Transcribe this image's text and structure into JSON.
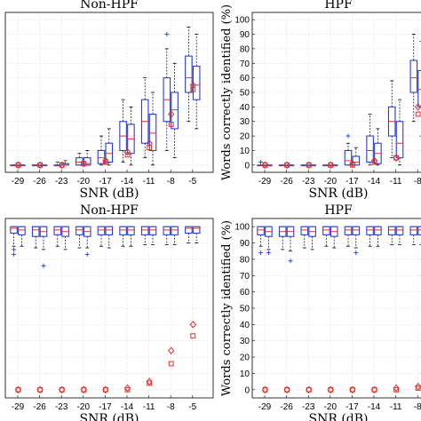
{
  "chart_data": [
    {
      "type": "box",
      "title": "Non-HPF",
      "xlabel": "SNR (dB)",
      "ylabel": "",
      "categories": [
        "-29",
        "-26",
        "-23",
        "-20",
        "-17",
        "-14",
        "-11",
        "-8",
        "-5"
      ],
      "ylim": [
        -5,
        105
      ],
      "yticks": [],
      "grid": true,
      "series": [
        {
          "color": "#2b3fcf",
          "boxes": [
            {
              "q1": 0,
              "med": 0,
              "q3": 0,
              "wlo": 0,
              "whi": 0,
              "out": []
            },
            {
              "q1": 0,
              "med": 0,
              "q3": 0,
              "wlo": 0,
              "whi": 0,
              "out": []
            },
            {
              "q1": 0,
              "med": 0,
              "q3": 0,
              "wlo": 0,
              "whi": 2,
              "out": []
            },
            {
              "q1": 0,
              "med": 2,
              "q3": 5,
              "wlo": 0,
              "whi": 8,
              "out": []
            },
            {
              "q1": 1,
              "med": 5,
              "q3": 10,
              "wlo": 0,
              "whi": 20,
              "out": []
            },
            {
              "q1": 10,
              "med": 20,
              "q3": 30,
              "wlo": 2,
              "whi": 45,
              "out": []
            },
            {
              "q1": 15,
              "med": 30,
              "q3": 45,
              "wlo": 5,
              "whi": 60,
              "out": []
            },
            {
              "q1": 30,
              "med": 45,
              "q3": 60,
              "wlo": 10,
              "whi": 80,
              "out": [
                90
              ]
            },
            {
              "q1": 50,
              "med": 60,
              "q3": 75,
              "wlo": 30,
              "whi": 95,
              "out": []
            }
          ]
        },
        {
          "color": "#2b3fcf",
          "boxes": [
            {
              "q1": 0,
              "med": 0,
              "q3": 0,
              "wlo": 0,
              "whi": 0,
              "out": []
            },
            {
              "q1": 0,
              "med": 0,
              "q3": 0,
              "wlo": 0,
              "whi": 0,
              "out": []
            },
            {
              "q1": 0,
              "med": 0,
              "q3": 1,
              "wlo": 0,
              "whi": 3,
              "out": []
            },
            {
              "q1": 0,
              "med": 1,
              "q3": 5,
              "wlo": 0,
              "whi": 10,
              "out": []
            },
            {
              "q1": 2,
              "med": 8,
              "q3": 15,
              "wlo": 0,
              "whi": 25,
              "out": []
            },
            {
              "q1": 8,
              "med": 18,
              "q3": 28,
              "wlo": 0,
              "whi": 40,
              "out": []
            },
            {
              "q1": 10,
              "med": 22,
              "q3": 35,
              "wlo": 0,
              "whi": 50,
              "out": []
            },
            {
              "q1": 25,
              "med": 38,
              "q3": 50,
              "wlo": 5,
              "whi": 70,
              "out": []
            },
            {
              "q1": 45,
              "med": 55,
              "q3": 68,
              "wlo": 25,
              "whi": 90,
              "out": []
            }
          ]
        }
      ],
      "markers": [
        {
          "shape": "diamond",
          "color": "#e0312b",
          "values": [
            0,
            0,
            0,
            1,
            3,
            9,
            15,
            35,
            55
          ]
        },
        {
          "shape": "square",
          "color": "#e0312b",
          "values": [
            0,
            0,
            0,
            1,
            2,
            7,
            12,
            28,
            52
          ]
        }
      ]
    },
    {
      "type": "box",
      "title": "HPF",
      "xlabel": "SNR (dB)",
      "ylabel": "Words correctly identified (%)",
      "categories": [
        "-29",
        "-26",
        "-23",
        "-20",
        "-17",
        "-14",
        "-11",
        "-8",
        "-5"
      ],
      "ylim": [
        -5,
        105
      ],
      "yticks": [
        0,
        10,
        20,
        30,
        40,
        50,
        60,
        70,
        80,
        90,
        100
      ],
      "grid": true,
      "series": [
        {
          "color": "#2b3fcf",
          "boxes": [
            {
              "q1": 0,
              "med": 0,
              "q3": 0,
              "wlo": 0,
              "whi": 0,
              "out": [
                2
              ]
            },
            {
              "q1": 0,
              "med": 0,
              "q3": 0,
              "wlo": 0,
              "whi": 0,
              "out": []
            },
            {
              "q1": 0,
              "med": 0,
              "q3": 0,
              "wlo": 0,
              "whi": 0,
              "out": []
            },
            {
              "q1": 0,
              "med": 0,
              "q3": 0,
              "wlo": 0,
              "whi": 0,
              "out": []
            },
            {
              "q1": 0,
              "med": 3,
              "q3": 10,
              "wlo": 0,
              "whi": 15,
              "out": [
                20
              ]
            },
            {
              "q1": 2,
              "med": 10,
              "q3": 20,
              "wlo": 0,
              "whi": 35,
              "out": []
            },
            {
              "q1": 20,
              "med": 30,
              "q3": 40,
              "wlo": 5,
              "whi": 58,
              "out": []
            },
            {
              "q1": 50,
              "med": 60,
              "q3": 72,
              "wlo": 30,
              "whi": 90,
              "out": []
            },
            {
              "q1": 30,
              "med": 45,
              "q3": 60,
              "wlo": 10,
              "whi": 85,
              "out": [
                100
              ]
            }
          ]
        },
        {
          "color": "#2b3fcf",
          "boxes": [
            {
              "q1": 0,
              "med": 0,
              "q3": 0,
              "wlo": 0,
              "whi": 0,
              "out": []
            },
            {
              "q1": 0,
              "med": 0,
              "q3": 0,
              "wlo": 0,
              "whi": 0,
              "out": []
            },
            {
              "q1": 0,
              "med": 0,
              "q3": 0,
              "wlo": 0,
              "whi": 0,
              "out": []
            },
            {
              "q1": 0,
              "med": 0,
              "q3": 0,
              "wlo": 0,
              "whi": 0,
              "out": []
            },
            {
              "q1": 0,
              "med": 2,
              "q3": 6,
              "wlo": 0,
              "whi": 12,
              "out": []
            },
            {
              "q1": 1,
              "med": 8,
              "q3": 15,
              "wlo": 0,
              "whi": 25,
              "out": []
            },
            {
              "q1": 5,
              "med": 15,
              "q3": 30,
              "wlo": 0,
              "whi": 45,
              "out": []
            },
            {
              "q1": 40,
              "med": 52,
              "q3": 65,
              "wlo": 20,
              "whi": 85,
              "out": []
            },
            {
              "q1": 25,
              "med": 40,
              "q3": 55,
              "wlo": 5,
              "whi": 80,
              "out": []
            }
          ]
        }
      ],
      "markers": [
        {
          "shape": "diamond",
          "color": "#e0312b",
          "values": [
            0,
            0,
            0,
            0,
            1,
            3,
            5,
            40,
            45
          ]
        },
        {
          "shape": "square",
          "color": "#e0312b",
          "values": [
            0,
            0,
            0,
            0,
            0,
            2,
            5,
            35,
            40
          ]
        }
      ]
    },
    {
      "type": "box",
      "title": "Non-HPF",
      "xlabel": "SNR (dB)",
      "ylabel": "",
      "categories": [
        "-29",
        "-26",
        "-23",
        "-20",
        "-17",
        "-14",
        "-11",
        "-8",
        "-5"
      ],
      "ylim": [
        -5,
        105
      ],
      "yticks": [],
      "grid": true,
      "series": [
        {
          "color": "#2b3fcf",
          "boxes": [
            {
              "q1": 96,
              "med": 99,
              "q3": 100,
              "wlo": 88,
              "whi": 100,
              "out": [
                86,
                83
              ]
            },
            {
              "q1": 94,
              "med": 98,
              "q3": 100,
              "wlo": 87,
              "whi": 100,
              "out": []
            },
            {
              "q1": 95,
              "med": 98,
              "q3": 100,
              "wlo": 88,
              "whi": 100,
              "out": []
            },
            {
              "q1": 95,
              "med": 98,
              "q3": 100,
              "wlo": 87,
              "whi": 100,
              "out": []
            },
            {
              "q1": 95,
              "med": 98,
              "q3": 100,
              "wlo": 88,
              "whi": 100,
              "out": []
            },
            {
              "q1": 95,
              "med": 98,
              "q3": 100,
              "wlo": 88,
              "whi": 100,
              "out": []
            },
            {
              "q1": 95,
              "med": 98,
              "q3": 100,
              "wlo": 89,
              "whi": 100,
              "out": []
            },
            {
              "q1": 95,
              "med": 98,
              "q3": 100,
              "wlo": 89,
              "whi": 100,
              "out": []
            },
            {
              "q1": 96,
              "med": 99,
              "q3": 100,
              "wlo": 90,
              "whi": 100,
              "out": []
            }
          ]
        },
        {
          "color": "#2b3fcf",
          "boxes": [
            {
              "q1": 95,
              "med": 98,
              "q3": 100,
              "wlo": 88,
              "whi": 100,
              "out": []
            },
            {
              "q1": 94,
              "med": 97,
              "q3": 100,
              "wlo": 86,
              "whi": 100,
              "out": [
                76
              ]
            },
            {
              "q1": 94,
              "med": 97,
              "q3": 100,
              "wlo": 86,
              "whi": 100,
              "out": []
            },
            {
              "q1": 94,
              "med": 97,
              "q3": 100,
              "wlo": 87,
              "whi": 100,
              "out": [
                83
              ]
            },
            {
              "q1": 95,
              "med": 98,
              "q3": 100,
              "wlo": 87,
              "whi": 100,
              "out": []
            },
            {
              "q1": 95,
              "med": 98,
              "q3": 100,
              "wlo": 88,
              "whi": 100,
              "out": []
            },
            {
              "q1": 95,
              "med": 98,
              "q3": 100,
              "wlo": 89,
              "whi": 100,
              "out": []
            },
            {
              "q1": 95,
              "med": 98,
              "q3": 100,
              "wlo": 89,
              "whi": 100,
              "out": []
            },
            {
              "q1": 96,
              "med": 99,
              "q3": 100,
              "wlo": 90,
              "whi": 100,
              "out": []
            }
          ]
        }
      ],
      "markers": [
        {
          "shape": "diamond",
          "color": "#e0312b",
          "values": [
            0,
            0,
            0,
            0,
            0,
            1,
            5,
            24,
            40
          ]
        },
        {
          "shape": "square",
          "color": "#e0312b",
          "values": [
            0,
            0,
            0,
            0,
            0,
            0,
            4,
            16,
            33
          ]
        }
      ]
    },
    {
      "type": "box",
      "title": "HPF",
      "xlabel": "SNR (dB)",
      "ylabel": "Words correctly identified (%)",
      "categories": [
        "-29",
        "-26",
        "-23",
        "-20",
        "-17",
        "-14",
        "-11",
        "-8",
        "-5"
      ],
      "ylim": [
        -5,
        105
      ],
      "yticks": [
        0,
        10,
        20,
        30,
        40,
        50,
        60,
        70,
        80,
        90,
        100
      ],
      "grid": true,
      "series": [
        {
          "color": "#2b3fcf",
          "boxes": [
            {
              "q1": 95,
              "med": 98,
              "q3": 100,
              "wlo": 88,
              "whi": 100,
              "out": [
                84
              ]
            },
            {
              "q1": 94,
              "med": 97,
              "q3": 100,
              "wlo": 86,
              "whi": 100,
              "out": []
            },
            {
              "q1": 95,
              "med": 98,
              "q3": 100,
              "wlo": 87,
              "whi": 100,
              "out": []
            },
            {
              "q1": 95,
              "med": 98,
              "q3": 100,
              "wlo": 88,
              "whi": 100,
              "out": []
            },
            {
              "q1": 95,
              "med": 98,
              "q3": 100,
              "wlo": 88,
              "whi": 100,
              "out": []
            },
            {
              "q1": 95,
              "med": 98,
              "q3": 100,
              "wlo": 88,
              "whi": 100,
              "out": []
            },
            {
              "q1": 95,
              "med": 98,
              "q3": 100,
              "wlo": 89,
              "whi": 100,
              "out": []
            },
            {
              "q1": 95,
              "med": 98,
              "q3": 100,
              "wlo": 89,
              "whi": 100,
              "out": []
            },
            {
              "q1": 96,
              "med": 99,
              "q3": 100,
              "wlo": 90,
              "whi": 100,
              "out": []
            }
          ]
        },
        {
          "color": "#2b3fcf",
          "boxes": [
            {
              "q1": 94,
              "med": 97,
              "q3": 100,
              "wlo": 86,
              "whi": 100,
              "out": [
                84
              ]
            },
            {
              "q1": 94,
              "med": 97,
              "q3": 100,
              "wlo": 85,
              "whi": 100,
              "out": [
                79
              ]
            },
            {
              "q1": 94,
              "med": 97,
              "q3": 100,
              "wlo": 86,
              "whi": 100,
              "out": []
            },
            {
              "q1": 94,
              "med": 97,
              "q3": 100,
              "wlo": 87,
              "whi": 100,
              "out": []
            },
            {
              "q1": 95,
              "med": 98,
              "q3": 100,
              "wlo": 87,
              "whi": 100,
              "out": [
                84
              ]
            },
            {
              "q1": 95,
              "med": 98,
              "q3": 100,
              "wlo": 88,
              "whi": 100,
              "out": []
            },
            {
              "q1": 95,
              "med": 98,
              "q3": 100,
              "wlo": 89,
              "whi": 100,
              "out": []
            },
            {
              "q1": 95,
              "med": 98,
              "q3": 100,
              "wlo": 89,
              "whi": 100,
              "out": []
            },
            {
              "q1": 96,
              "med": 99,
              "q3": 100,
              "wlo": 90,
              "whi": 100,
              "out": [
                88
              ]
            }
          ]
        }
      ],
      "markers": [
        {
          "shape": "diamond",
          "color": "#e0312b",
          "values": [
            0,
            0,
            0,
            0,
            0,
            0,
            1,
            2,
            20
          ]
        },
        {
          "shape": "square",
          "color": "#e0312b",
          "values": [
            0,
            0,
            0,
            0,
            0,
            0,
            0,
            1,
            8
          ]
        }
      ]
    }
  ]
}
